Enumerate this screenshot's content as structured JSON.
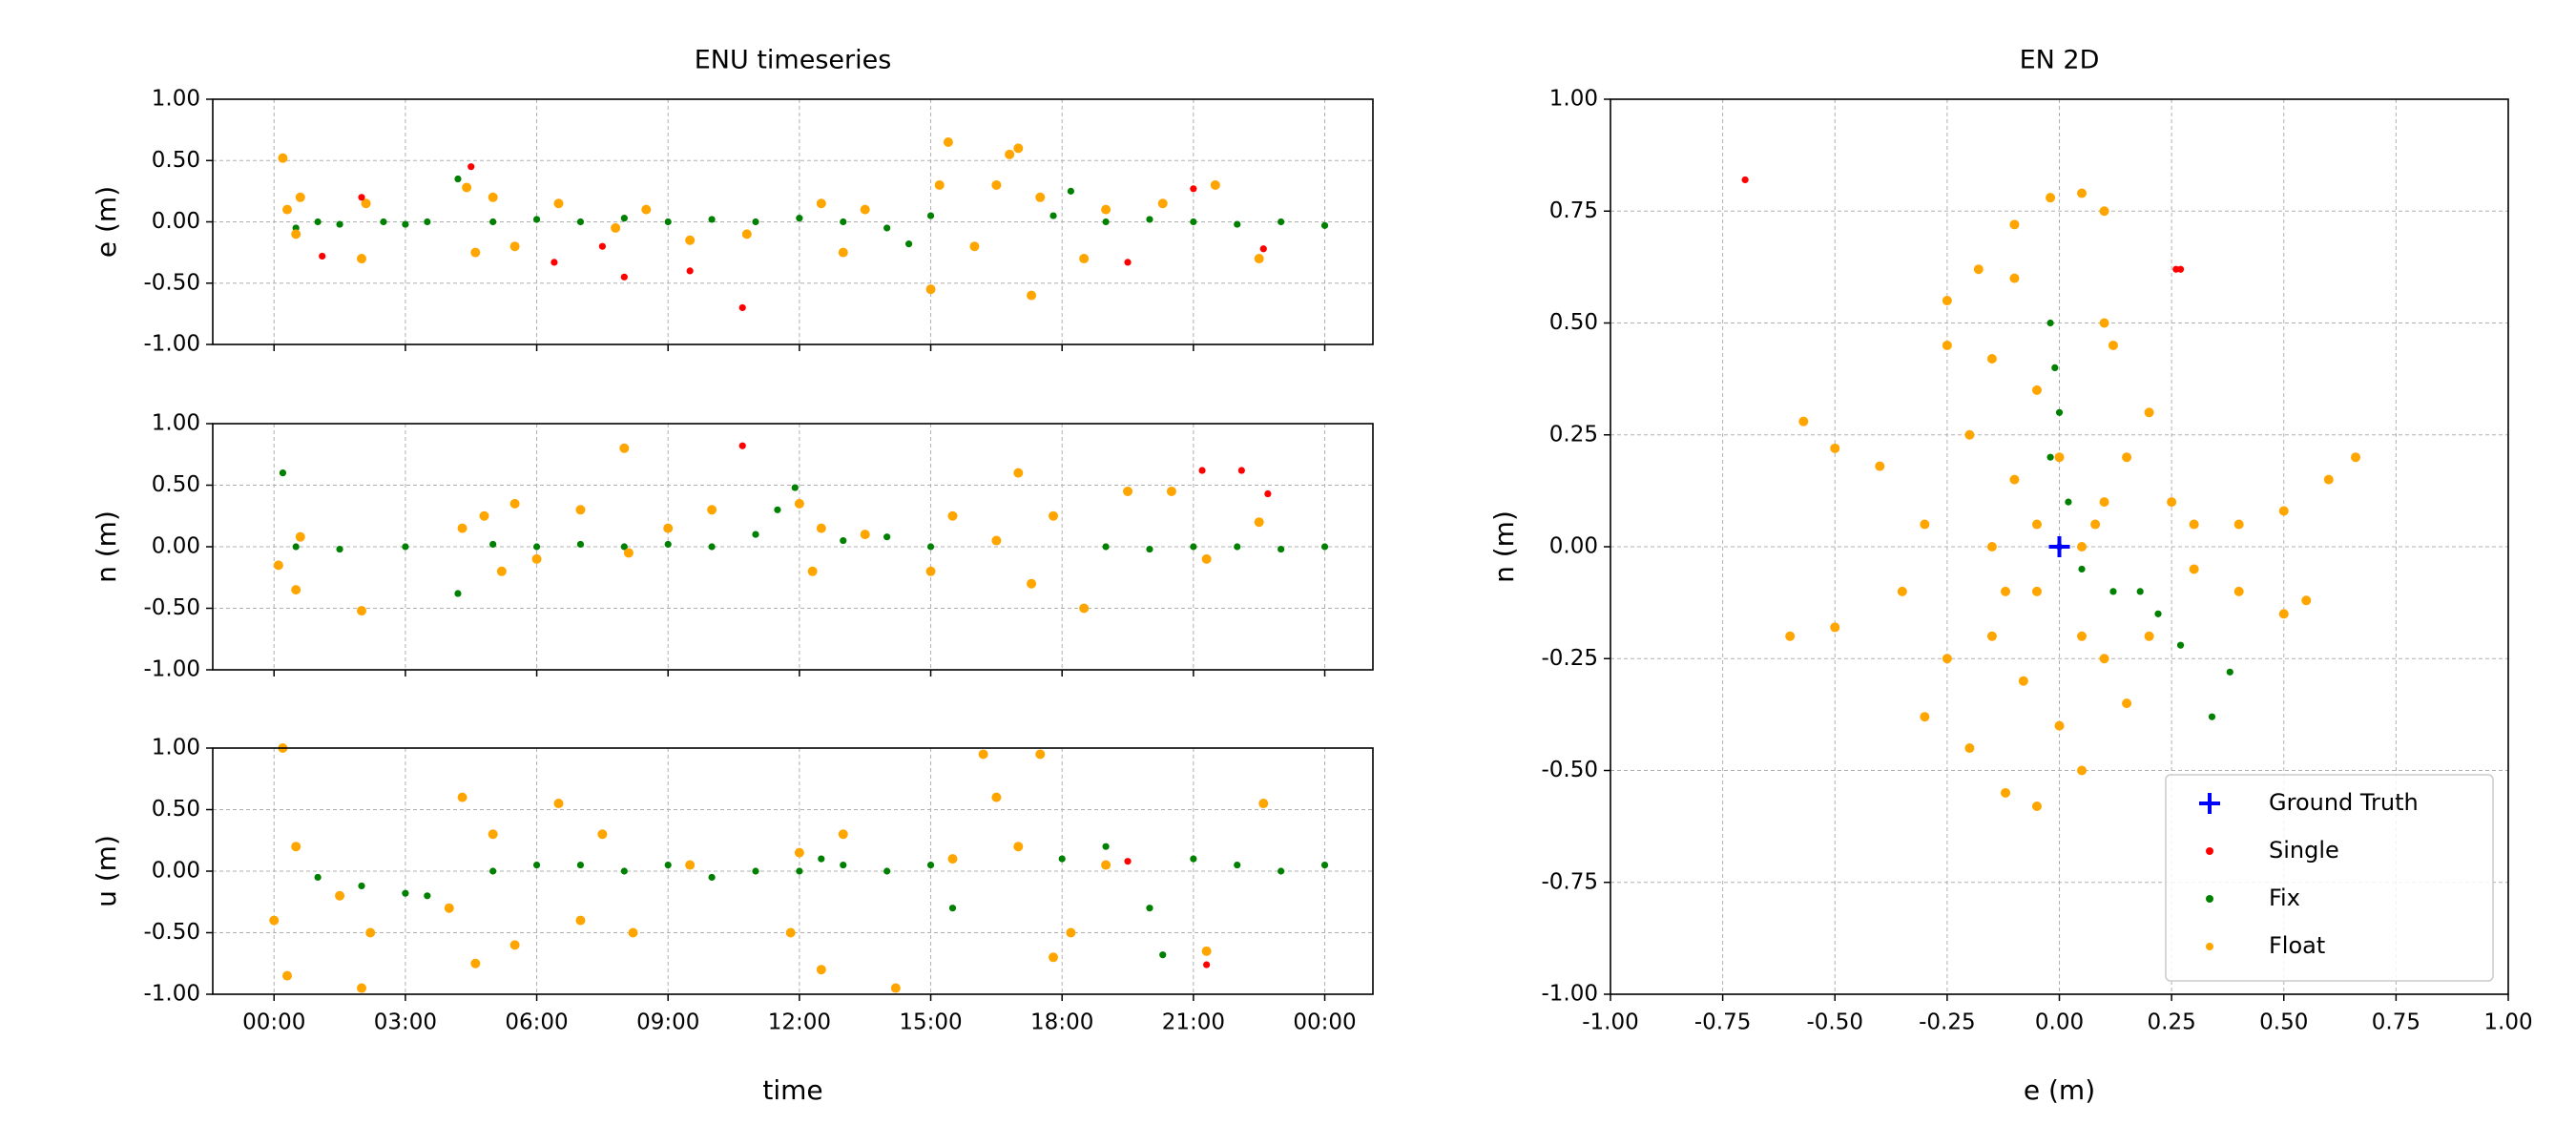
{
  "chart_data": [
    {
      "type": "scatter",
      "title": "ENU timeseries",
      "ylabel": "e (m)",
      "xlim": [
        -1.4,
        25.1
      ],
      "ylim": [
        -1,
        1
      ],
      "yticks": [
        {
          "value": 1,
          "label": "1.00"
        },
        {
          "value": 0.5,
          "label": "0.50"
        },
        {
          "value": 0,
          "label": "0.00"
        },
        {
          "value": -0.5,
          "label": "-0.50"
        },
        {
          "value": -1,
          "label": "-1.00"
        }
      ],
      "grid": true,
      "series": [
        {
          "color": "green",
          "x": [
            0.5,
            1,
            1.5,
            2.5,
            3,
            3.5,
            4.2,
            5,
            6,
            7,
            8,
            9,
            10,
            11,
            12,
            13,
            14,
            14.5,
            15,
            17.8,
            18.2,
            19,
            20,
            21,
            22,
            23,
            24
          ],
          "values": [
            -0.05,
            0,
            -0.02,
            0,
            -0.02,
            0,
            0.35,
            0,
            0.02,
            0,
            0.03,
            0,
            0.02,
            0,
            0.03,
            0,
            -0.05,
            -0.18,
            0.05,
            0.05,
            0.25,
            0,
            0.02,
            0,
            -0.02,
            0,
            -0.03
          ]
        },
        {
          "color": "orange",
          "x": [
            0.2,
            0.3,
            0.5,
            0.6,
            2,
            2.1,
            4.4,
            4.6,
            5,
            5.5,
            6.5,
            7.8,
            8.5,
            9.5,
            10.8,
            12.5,
            13,
            13.5,
            15,
            15.2,
            15.4,
            16,
            16.5,
            16.8,
            17,
            17.3,
            17.5,
            18.5,
            19,
            20.3,
            21.5,
            22.5
          ],
          "values": [
            0.52,
            0.1,
            -0.1,
            0.2,
            -0.3,
            0.15,
            0.28,
            -0.25,
            0.2,
            -0.2,
            0.15,
            -0.05,
            0.1,
            -0.15,
            -0.1,
            0.15,
            -0.25,
            0.1,
            -0.55,
            0.3,
            0.65,
            -0.2,
            0.3,
            0.55,
            0.6,
            -0.6,
            0.2,
            -0.3,
            0.1,
            0.15,
            0.3,
            -0.3
          ]
        },
        {
          "color": "red",
          "x": [
            1.1,
            2,
            4.5,
            6.4,
            7.5,
            8,
            9.5,
            10.7,
            19.5,
            21,
            22.6
          ],
          "values": [
            -0.28,
            0.2,
            0.45,
            -0.33,
            -0.2,
            -0.45,
            -0.4,
            -0.7,
            -0.33,
            0.27,
            -0.22
          ]
        }
      ]
    },
    {
      "type": "scatter",
      "ylabel": "n (m)",
      "xlim": [
        -1.4,
        25.1
      ],
      "ylim": [
        -1,
        1
      ],
      "yticks": [
        {
          "value": 1,
          "label": "1.00"
        },
        {
          "value": 0.5,
          "label": "0.50"
        },
        {
          "value": 0,
          "label": "0.00"
        },
        {
          "value": -0.5,
          "label": "-0.50"
        },
        {
          "value": -1,
          "label": "-1.00"
        }
      ],
      "grid": true,
      "series": [
        {
          "color": "green",
          "x": [
            0.2,
            0.5,
            1.5,
            3,
            4.2,
            5,
            6,
            7,
            8,
            9,
            10,
            11,
            11.5,
            11.9,
            13,
            14,
            15,
            19,
            20,
            21,
            22,
            23,
            24
          ],
          "values": [
            0.6,
            0,
            -0.02,
            0,
            -0.38,
            0.02,
            0,
            0.02,
            0,
            0.02,
            0,
            0.1,
            0.3,
            0.48,
            0.05,
            0.08,
            0,
            0,
            -0.02,
            0,
            0,
            -0.02,
            0
          ]
        },
        {
          "color": "orange",
          "x": [
            0.1,
            0.5,
            0.6,
            2,
            4.3,
            4.8,
            5.2,
            5.5,
            6,
            7,
            8,
            8.1,
            9,
            10,
            12,
            12.3,
            12.5,
            13.5,
            15,
            15.5,
            16.5,
            17,
            17.3,
            17.8,
            18.5,
            19.5,
            20.5,
            21.3,
            22.5
          ],
          "values": [
            -0.15,
            -0.35,
            0.08,
            -0.52,
            0.15,
            0.25,
            -0.2,
            0.35,
            -0.1,
            0.3,
            0.8,
            -0.05,
            0.15,
            0.3,
            0.35,
            -0.2,
            0.15,
            0.1,
            -0.2,
            0.25,
            0.05,
            0.6,
            -0.3,
            0.25,
            -0.5,
            0.45,
            0.45,
            -0.1,
            0.2
          ]
        },
        {
          "color": "red",
          "x": [
            10.7,
            21.2,
            22.1,
            22.7
          ],
          "values": [
            0.82,
            0.62,
            0.62,
            0.43
          ]
        }
      ]
    },
    {
      "type": "scatter",
      "ylabel": "u (m)",
      "xlabel": "time",
      "xlim": [
        -1.4,
        25.1
      ],
      "ylim": [
        -1,
        1
      ],
      "xticks": [
        {
          "value": 0,
          "label": "00:00"
        },
        {
          "value": 3,
          "label": "03:00"
        },
        {
          "value": 6,
          "label": "06:00"
        },
        {
          "value": 9,
          "label": "09:00"
        },
        {
          "value": 12,
          "label": "12:00"
        },
        {
          "value": 15,
          "label": "15:00"
        },
        {
          "value": 18,
          "label": "18:00"
        },
        {
          "value": 21,
          "label": "21:00"
        },
        {
          "value": 24,
          "label": "00:00"
        }
      ],
      "yticks": [
        {
          "value": 1,
          "label": "1.00"
        },
        {
          "value": 0.5,
          "label": "0.50"
        },
        {
          "value": 0,
          "label": "0.00"
        },
        {
          "value": -0.5,
          "label": "-0.50"
        },
        {
          "value": -1,
          "label": "-1.00"
        }
      ],
      "grid": true,
      "series": [
        {
          "color": "green",
          "x": [
            1,
            2,
            3,
            3.5,
            4,
            5,
            6,
            7,
            8,
            9,
            10,
            11,
            12,
            12.5,
            13,
            14,
            15,
            15.5,
            18,
            19,
            20,
            20.3,
            21,
            22,
            23,
            24
          ],
          "values": [
            -0.05,
            -0.12,
            -0.18,
            -0.2,
            -0.3,
            0,
            0.05,
            0.05,
            0,
            0.05,
            -0.05,
            0,
            0,
            0.1,
            0.05,
            0,
            0.05,
            -0.3,
            0.1,
            0.2,
            -0.3,
            -0.68,
            0.1,
            0.05,
            0,
            0.05
          ]
        },
        {
          "color": "orange",
          "x": [
            0.2,
            0.3,
            0.5,
            0,
            1.5,
            2,
            2.2,
            4,
            4.3,
            4.6,
            5,
            5.5,
            6.5,
            7,
            7.5,
            8.2,
            9.5,
            11.8,
            12,
            12.5,
            13,
            14.2,
            15.5,
            16.2,
            16.5,
            17,
            17.5,
            17.8,
            18.2,
            19,
            21.3,
            22.6
          ],
          "values": [
            1,
            -0.85,
            0.2,
            -0.4,
            -0.2,
            -0.95,
            -0.5,
            -0.3,
            0.6,
            -0.75,
            0.3,
            -0.6,
            0.55,
            -0.4,
            0.3,
            -0.5,
            0.05,
            -0.5,
            0.15,
            -0.8,
            0.3,
            -0.95,
            0.1,
            0.95,
            0.6,
            0.2,
            0.95,
            -0.7,
            -0.5,
            0.05,
            -0.65,
            0.55
          ]
        },
        {
          "color": "red",
          "x": [
            19.5,
            21.3
          ],
          "values": [
            0.08,
            -0.76
          ]
        }
      ]
    },
    {
      "type": "scatter",
      "title": "EN 2D",
      "xlabel": "e (m)",
      "ylabel": "n (m)",
      "xlim": [
        -1,
        1
      ],
      "ylim": [
        -1,
        1
      ],
      "xticks": [
        {
          "value": -1,
          "label": "-1.00"
        },
        {
          "value": -0.75,
          "label": "-0.75"
        },
        {
          "value": -0.5,
          "label": "-0.50"
        },
        {
          "value": -0.25,
          "label": "-0.25"
        },
        {
          "value": 0,
          "label": "0.00"
        },
        {
          "value": 0.25,
          "label": "0.25"
        },
        {
          "value": 0.5,
          "label": "0.50"
        },
        {
          "value": 0.75,
          "label": "0.75"
        },
        {
          "value": 1,
          "label": "1.00"
        }
      ],
      "yticks": [
        {
          "value": 1,
          "label": "1.00"
        },
        {
          "value": 0.75,
          "label": "0.75"
        },
        {
          "value": 0.5,
          "label": "0.50"
        },
        {
          "value": 0.25,
          "label": "0.25"
        },
        {
          "value": 0,
          "label": "0.00"
        },
        {
          "value": -0.25,
          "label": "-0.25"
        },
        {
          "value": -0.5,
          "label": "-0.50"
        },
        {
          "value": -0.75,
          "label": "-0.75"
        },
        {
          "value": -1,
          "label": "-1.00"
        }
      ],
      "grid": true,
      "legend": "lower right",
      "series": [
        {
          "name": "Ground Truth",
          "color": "blue",
          "marker": "+",
          "x": [
            0
          ],
          "values": [
            0
          ]
        },
        {
          "name": "Single",
          "color": "red",
          "x": [
            -0.7,
            0.26,
            0.27
          ],
          "values": [
            0.82,
            0.62,
            0.62
          ]
        },
        {
          "name": "Fix",
          "color": "green",
          "x": [
            -0.02,
            -0.01,
            0,
            -0.02,
            0.02,
            0,
            0.05,
            0.18,
            0.22,
            0.27,
            0.38,
            0.34,
            0.12,
            -0.05
          ],
          "values": [
            0.5,
            0.4,
            0.3,
            0.2,
            0.1,
            0,
            -0.05,
            -0.1,
            -0.15,
            -0.22,
            -0.28,
            -0.38,
            -0.1,
            0.05
          ]
        },
        {
          "name": "Float",
          "color": "orange",
          "x": [
            -0.57,
            -0.5,
            -0.4,
            -0.3,
            -0.6,
            -0.5,
            -0.35,
            -0.25,
            -0.15,
            -0.05,
            -0.1,
            -0.18,
            -0.25,
            0.1,
            0.12,
            -0.02,
            0.05,
            0.1,
            -0.1,
            0.2,
            0.25,
            0.3,
            0.4,
            0.5,
            0.6,
            0.66,
            0.55,
            0.5,
            0.4,
            0.3,
            0.15,
            0.05,
            -0.05,
            -0.12,
            -0.2,
            -0.3,
            -0.25,
            -0.15,
            -0.05,
            0.05,
            0.1,
            -0.1,
            -0.15,
            0,
            0.05,
            -0.08,
            0.15,
            0.2,
            -0.2,
            0,
            0.1,
            -0.05,
            0.08,
            -0.12
          ],
          "values": [
            0.28,
            0.22,
            0.18,
            0.05,
            -0.2,
            -0.18,
            -0.1,
            0.45,
            0.42,
            0.35,
            0.6,
            0.62,
            0.55,
            0.5,
            0.45,
            0.78,
            0.79,
            0.75,
            0.72,
            0.3,
            0.1,
            0.05,
            0.05,
            0.08,
            0.15,
            0.2,
            -0.12,
            -0.15,
            -0.1,
            -0.05,
            -0.35,
            -0.5,
            -0.58,
            -0.55,
            -0.45,
            -0.38,
            -0.25,
            -0.2,
            -0.1,
            0,
            0.1,
            0.15,
            0,
            0.2,
            -0.2,
            -0.3,
            0.2,
            -0.2,
            0.25,
            -0.4,
            -0.25,
            0.05,
            0.05,
            -0.1
          ]
        }
      ]
    }
  ]
}
